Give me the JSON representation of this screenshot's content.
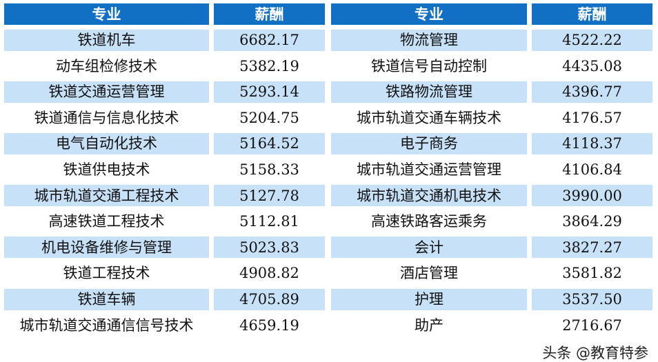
{
  "colors": {
    "header": "#1170c4",
    "stripe": "#c6e1f8"
  },
  "left": {
    "headers": [
      "专业",
      "薪酬"
    ],
    "rows": [
      [
        "铁道机车",
        "6682.17"
      ],
      [
        "动车组检修技术",
        "5382.19"
      ],
      [
        "铁道交通运营管理",
        "5293.14"
      ],
      [
        "铁道通信与信息化技术",
        "5204.75"
      ],
      [
        "电气自动化技术",
        "5164.52"
      ],
      [
        "铁道供电技术",
        "5158.33"
      ],
      [
        "城市轨道交通工程技术",
        "5127.78"
      ],
      [
        "高速铁道工程技术",
        "5112.81"
      ],
      [
        "机电设备维修与管理",
        "5023.83"
      ],
      [
        "铁道工程技术",
        "4908.82"
      ],
      [
        "铁道车辆",
        "4705.89"
      ],
      [
        "城市轨道交通通信信号技术",
        "4659.19"
      ]
    ]
  },
  "right": {
    "headers": [
      "专业",
      "薪酬"
    ],
    "rows": [
      [
        "物流管理",
        "4522.22"
      ],
      [
        "铁道信号自动控制",
        "4435.08"
      ],
      [
        "铁路物流管理",
        "4396.77"
      ],
      [
        "城市轨道交通车辆技术",
        "4176.57"
      ],
      [
        "电子商务",
        "4118.37"
      ],
      [
        "城市轨道交通运营管理",
        "4106.84"
      ],
      [
        "城市轨道交通机电技术",
        "3990.00"
      ],
      [
        "高速铁路客运乘务",
        "3864.29"
      ],
      [
        "会计",
        "3827.27"
      ],
      [
        "酒店管理",
        "3581.82"
      ],
      [
        "护理",
        "3537.50"
      ],
      [
        "助产",
        "2716.67"
      ]
    ]
  },
  "watermark": "头条 @教育特参"
}
